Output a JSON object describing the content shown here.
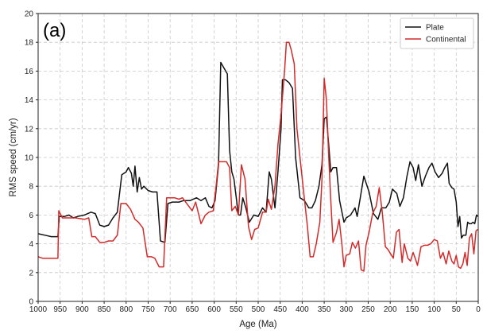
{
  "chart_data": {
    "type": "line",
    "panel_label": "(a)",
    "xlabel": "Age (Ma)",
    "ylabel": "RMS speed (cm/yr)",
    "xlim": [
      1000,
      0
    ],
    "ylim": [
      0,
      20
    ],
    "x_reversed": true,
    "x_ticks": [
      1000,
      950,
      900,
      850,
      800,
      750,
      700,
      650,
      600,
      550,
      500,
      450,
      400,
      350,
      300,
      250,
      200,
      150,
      100,
      50,
      0
    ],
    "y_ticks": [
      0,
      2,
      4,
      6,
      8,
      10,
      12,
      14,
      16,
      18,
      20
    ],
    "grid": true,
    "legend_position": "top-right",
    "series": [
      {
        "name": "Plate",
        "color": "#111111",
        "points": [
          [
            1000,
            4.7
          ],
          [
            985,
            4.6
          ],
          [
            970,
            4.5
          ],
          [
            955,
            4.5
          ],
          [
            952,
            5.9
          ],
          [
            940,
            5.9
          ],
          [
            930,
            6.0
          ],
          [
            920,
            5.8
          ],
          [
            910,
            5.9
          ],
          [
            895,
            6.0
          ],
          [
            880,
            6.2
          ],
          [
            870,
            6.1
          ],
          [
            860,
            5.3
          ],
          [
            850,
            5.2
          ],
          [
            840,
            5.3
          ],
          [
            830,
            5.8
          ],
          [
            820,
            6.2
          ],
          [
            810,
            8.8
          ],
          [
            800,
            9.0
          ],
          [
            795,
            9.3
          ],
          [
            788,
            8.9
          ],
          [
            784,
            8.0
          ],
          [
            780,
            9.4
          ],
          [
            775,
            7.6
          ],
          [
            770,
            8.6
          ],
          [
            765,
            7.8
          ],
          [
            760,
            8.0
          ],
          [
            750,
            7.7
          ],
          [
            740,
            7.6
          ],
          [
            730,
            7.6
          ],
          [
            722,
            4.2
          ],
          [
            712,
            4.1
          ],
          [
            705,
            6.8
          ],
          [
            695,
            6.9
          ],
          [
            680,
            6.9
          ],
          [
            670,
            7.0
          ],
          [
            655,
            7.0
          ],
          [
            640,
            7.2
          ],
          [
            630,
            7.0
          ],
          [
            620,
            7.2
          ],
          [
            612,
            6.6
          ],
          [
            605,
            6.5
          ],
          [
            598,
            7.0
          ],
          [
            590,
            9.5
          ],
          [
            585,
            16.6
          ],
          [
            570,
            15.8
          ],
          [
            565,
            10.5
          ],
          [
            560,
            9.0
          ],
          [
            555,
            8.5
          ],
          [
            545,
            6.0
          ],
          [
            540,
            6.0
          ],
          [
            535,
            7.2
          ],
          [
            528,
            6.5
          ],
          [
            520,
            5.5
          ],
          [
            510,
            6.0
          ],
          [
            500,
            5.9
          ],
          [
            490,
            6.5
          ],
          [
            482,
            6.2
          ],
          [
            475,
            9.0
          ],
          [
            470,
            8.5
          ],
          [
            462,
            6.5
          ],
          [
            455,
            9.0
          ],
          [
            448,
            12.0
          ],
          [
            445,
            15.4
          ],
          [
            438,
            15.4
          ],
          [
            430,
            15.2
          ],
          [
            422,
            14.8
          ],
          [
            415,
            10.0
          ],
          [
            405,
            7.2
          ],
          [
            395,
            7.0
          ],
          [
            385,
            6.5
          ],
          [
            378,
            6.5
          ],
          [
            370,
            7.0
          ],
          [
            362,
            8.0
          ],
          [
            355,
            9.5
          ],
          [
            350,
            12.7
          ],
          [
            345,
            12.8
          ],
          [
            340,
            11.0
          ],
          [
            335,
            9.0
          ],
          [
            330,
            9.3
          ],
          [
            322,
            9.3
          ],
          [
            315,
            7.0
          ],
          [
            305,
            5.5
          ],
          [
            300,
            5.8
          ],
          [
            290,
            6.0
          ],
          [
            280,
            6.5
          ],
          [
            275,
            5.9
          ],
          [
            268,
            7.2
          ],
          [
            260,
            8.7
          ],
          [
            248,
            7.6
          ],
          [
            238,
            6.1
          ],
          [
            228,
            5.7
          ],
          [
            220,
            6.5
          ],
          [
            210,
            6.5
          ],
          [
            202,
            6.9
          ],
          [
            195,
            7.8
          ],
          [
            185,
            7.5
          ],
          [
            178,
            6.6
          ],
          [
            170,
            7.2
          ],
          [
            162,
            8.7
          ],
          [
            155,
            9.7
          ],
          [
            148,
            9.3
          ],
          [
            142,
            8.4
          ],
          [
            136,
            9.5
          ],
          [
            128,
            8.0
          ],
          [
            120,
            8.7
          ],
          [
            112,
            9.3
          ],
          [
            105,
            9.6
          ],
          [
            98,
            9.0
          ],
          [
            90,
            8.6
          ],
          [
            82,
            8.9
          ],
          [
            76,
            9.3
          ],
          [
            70,
            9.6
          ],
          [
            66,
            8.2
          ],
          [
            60,
            7.9
          ],
          [
            55,
            7.8
          ],
          [
            50,
            6.9
          ],
          [
            46,
            5.2
          ],
          [
            42,
            5.9
          ],
          [
            38,
            4.4
          ],
          [
            34,
            4.6
          ],
          [
            28,
            4.6
          ],
          [
            24,
            5.5
          ],
          [
            20,
            5.4
          ],
          [
            16,
            5.4
          ],
          [
            12,
            5.5
          ],
          [
            8,
            5.4
          ],
          [
            4,
            6.0
          ],
          [
            1,
            5.9
          ]
        ]
      },
      {
        "name": "Continental",
        "color": "#d42a2a",
        "points": [
          [
            1000,
            3.1
          ],
          [
            990,
            3.0
          ],
          [
            975,
            3.0
          ],
          [
            955,
            3.0
          ],
          [
            953,
            6.3
          ],
          [
            945,
            5.8
          ],
          [
            930,
            5.8
          ],
          [
            915,
            5.8
          ],
          [
            895,
            5.7
          ],
          [
            885,
            5.8
          ],
          [
            878,
            4.5
          ],
          [
            870,
            4.5
          ],
          [
            860,
            4.1
          ],
          [
            850,
            4.1
          ],
          [
            840,
            4.2
          ],
          [
            830,
            4.2
          ],
          [
            820,
            4.6
          ],
          [
            812,
            6.8
          ],
          [
            800,
            6.8
          ],
          [
            790,
            6.4
          ],
          [
            780,
            5.7
          ],
          [
            772,
            5.5
          ],
          [
            762,
            5.1
          ],
          [
            752,
            3.1
          ],
          [
            742,
            3.1
          ],
          [
            735,
            3.0
          ],
          [
            725,
            2.4
          ],
          [
            715,
            2.4
          ],
          [
            708,
            7.2
          ],
          [
            700,
            7.2
          ],
          [
            690,
            7.2
          ],
          [
            680,
            7.1
          ],
          [
            672,
            7.2
          ],
          [
            660,
            6.7
          ],
          [
            650,
            6.3
          ],
          [
            642,
            6.9
          ],
          [
            630,
            5.4
          ],
          [
            620,
            6.0
          ],
          [
            612,
            6.2
          ],
          [
            602,
            6.3
          ],
          [
            595,
            8.2
          ],
          [
            590,
            9.7
          ],
          [
            572,
            9.7
          ],
          [
            565,
            9.3
          ],
          [
            560,
            6.3
          ],
          [
            552,
            6.6
          ],
          [
            545,
            6.0
          ],
          [
            538,
            9.5
          ],
          [
            530,
            8.5
          ],
          [
            522,
            5.2
          ],
          [
            515,
            4.3
          ],
          [
            508,
            5.0
          ],
          [
            500,
            5.1
          ],
          [
            490,
            6.2
          ],
          [
            482,
            6.2
          ],
          [
            477,
            7.1
          ],
          [
            470,
            6.4
          ],
          [
            462,
            8.0
          ],
          [
            455,
            10.9
          ],
          [
            448,
            13.0
          ],
          [
            440,
            16.0
          ],
          [
            436,
            18.0
          ],
          [
            430,
            18.0
          ],
          [
            425,
            17.5
          ],
          [
            418,
            16.5
          ],
          [
            412,
            12.0
          ],
          [
            405,
            10.0
          ],
          [
            395,
            7.1
          ],
          [
            388,
            5.2
          ],
          [
            382,
            3.1
          ],
          [
            375,
            3.1
          ],
          [
            368,
            4.0
          ],
          [
            360,
            5.5
          ],
          [
            355,
            8.5
          ],
          [
            350,
            15.5
          ],
          [
            345,
            14.0
          ],
          [
            340,
            10.3
          ],
          [
            335,
            7.0
          ],
          [
            330,
            4.1
          ],
          [
            322,
            4.8
          ],
          [
            316,
            5.7
          ],
          [
            310,
            4.0
          ],
          [
            305,
            2.4
          ],
          [
            300,
            3.2
          ],
          [
            292,
            3.3
          ],
          [
            286,
            4.1
          ],
          [
            279,
            3.7
          ],
          [
            272,
            4.2
          ],
          [
            266,
            2.2
          ],
          [
            260,
            2.1
          ],
          [
            255,
            3.9
          ],
          [
            248,
            4.8
          ],
          [
            240,
            6.1
          ],
          [
            232,
            6.6
          ],
          [
            225,
            7.9
          ],
          [
            218,
            6.2
          ],
          [
            211,
            3.8
          ],
          [
            205,
            3.6
          ],
          [
            199,
            3.3
          ],
          [
            193,
            3.0
          ],
          [
            186,
            4.8
          ],
          [
            180,
            5.0
          ],
          [
            173,
            2.7
          ],
          [
            168,
            4.0
          ],
          [
            160,
            3.0
          ],
          [
            154,
            2.8
          ],
          [
            148,
            3.4
          ],
          [
            142,
            2.9
          ],
          [
            138,
            2.5
          ],
          [
            130,
            3.8
          ],
          [
            122,
            3.9
          ],
          [
            115,
            3.9
          ],
          [
            108,
            4.0
          ],
          [
            100,
            4.3
          ],
          [
            93,
            4.2
          ],
          [
            86,
            3.0
          ],
          [
            80,
            3.4
          ],
          [
            73,
            2.6
          ],
          [
            67,
            3.5
          ],
          [
            60,
            2.8
          ],
          [
            55,
            2.6
          ],
          [
            50,
            3.2
          ],
          [
            45,
            2.4
          ],
          [
            40,
            2.3
          ],
          [
            35,
            2.6
          ],
          [
            30,
            3.4
          ],
          [
            25,
            2.5
          ],
          [
            20,
            4.4
          ],
          [
            15,
            4.7
          ],
          [
            10,
            3.3
          ],
          [
            5,
            4.9
          ],
          [
            1,
            5.0
          ]
        ]
      }
    ]
  }
}
